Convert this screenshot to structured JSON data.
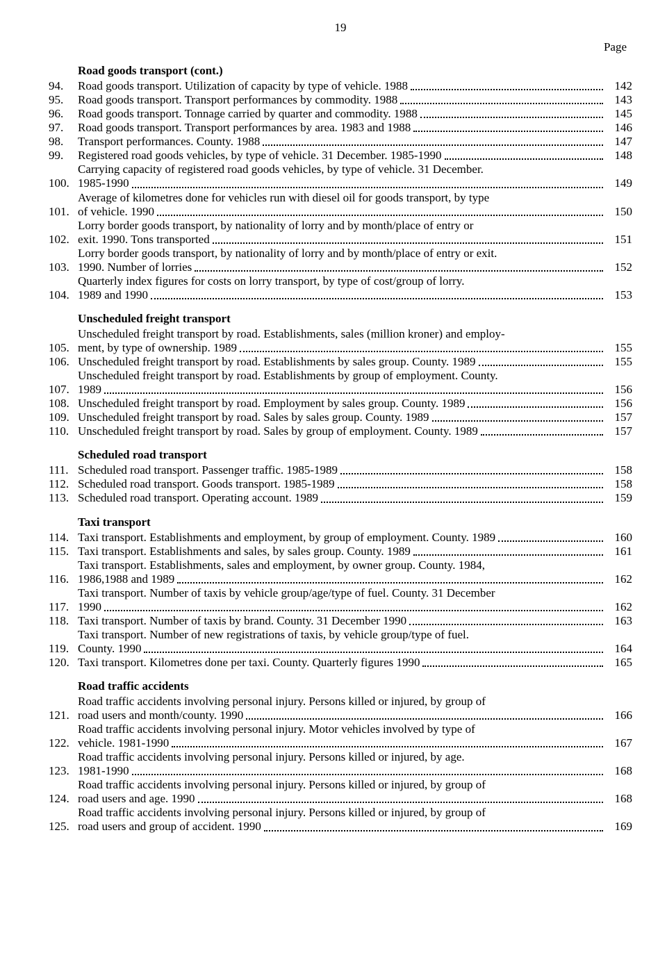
{
  "pageNumberTop": "19",
  "pageLabel": "Page",
  "sections": [
    {
      "title": "Road goods transport (cont.)",
      "entries": [
        {
          "num": "94.",
          "text": "Road goods transport.  Utilization of capacity by type of vehicle.  1988",
          "page": "142"
        },
        {
          "num": "95.",
          "text": "Road goods transport.  Transport performances by commodity.  1988",
          "page": "143"
        },
        {
          "num": "96.",
          "text": "Road goods transport.  Tonnage carried by quarter and commodity.  1988",
          "page": "145"
        },
        {
          "num": "97.",
          "text": "Road goods transport.  Transport performances by area.  1983 and 1988",
          "page": "146"
        },
        {
          "num": "98.",
          "text": "Transport performances.  County.  1988",
          "page": "147"
        },
        {
          "num": "99.",
          "text": "Registered road goods vehicles, by type of vehicle.  31 December.  1985-1990",
          "page": "148"
        },
        {
          "num": "100.",
          "lines": [
            "Carrying capacity of registered road goods vehicles, by type of vehicle.  31 December.",
            "1985-1990"
          ],
          "page": "149"
        },
        {
          "num": "101.",
          "lines": [
            "Average of kilometres done for vehicles run with diesel oil for goods transport, by type",
            "of vehicle.  1990"
          ],
          "page": "150"
        },
        {
          "num": "102.",
          "lines": [
            "Lorry border goods transport, by nationality of lorry and by month/place of entry or",
            "exit.  1990.  Tons transported"
          ],
          "page": "151"
        },
        {
          "num": "103.",
          "lines": [
            "Lorry border goods transport, by nationality of lorry and by month/place of entry or exit.",
            "1990.  Number of lorries"
          ],
          "page": "152"
        },
        {
          "num": "104.",
          "lines": [
            "Quarterly index figures for costs on lorry transport, by type of cost/group of lorry.",
            "1989 and 1990"
          ],
          "page": "153"
        }
      ]
    },
    {
      "title": "Unscheduled freight transport",
      "entries": [
        {
          "num": "105.",
          "lines": [
            "Unscheduled freight transport by road.  Establishments, sales (million kroner) and employ-",
            "ment, by type of ownership.  1989"
          ],
          "page": "155"
        },
        {
          "num": "106.",
          "text": "Unscheduled freight transport by road.  Establishments by sales group.  County.  1989",
          "page": "155"
        },
        {
          "num": "107.",
          "lines": [
            "Unscheduled freight transport by road.  Establishments by group of employment.  County.",
            "1989"
          ],
          "page": "156"
        },
        {
          "num": "108.",
          "text": "Unscheduled freight transport by road.  Employment by sales group.  County.  1989",
          "page": "156"
        },
        {
          "num": "109.",
          "text": "Unscheduled freight transport by road.  Sales by sales group.  County.  1989",
          "page": "157"
        },
        {
          "num": "110.",
          "text": "Unscheduled freight transport by road.  Sales by group of employment.  County.  1989",
          "page": "157"
        }
      ]
    },
    {
      "title": "Scheduled road transport",
      "entries": [
        {
          "num": "111.",
          "text": "Scheduled road transport.  Passenger traffic.  1985-1989",
          "page": "158"
        },
        {
          "num": "112.",
          "text": "Scheduled road transport.  Goods transport.  1985-1989",
          "page": "158"
        },
        {
          "num": "113.",
          "text": "Scheduled road transport.  Operating account.  1989",
          "page": "159"
        }
      ]
    },
    {
      "title": "Taxi transport",
      "entries": [
        {
          "num": "114.",
          "text": "Taxi transport.  Establishments and employment, by group of employment.  County.  1989",
          "page": "160"
        },
        {
          "num": "115.",
          "text": "Taxi transport.  Establishments and sales, by sales group.  County.  1989",
          "page": "161"
        },
        {
          "num": "116.",
          "lines": [
            "Taxi transport.  Establishments, sales and employment, by owner group.  County.  1984,",
            "1986,1988 and 1989"
          ],
          "page": "162"
        },
        {
          "num": "117.",
          "lines": [
            "Taxi transport.  Number of taxis by vehicle group/age/type of fuel.  County.  31 December",
            "1990"
          ],
          "page": "162"
        },
        {
          "num": "118.",
          "text": "Taxi transport.  Number of taxis by brand.  County.  31 December 1990",
          "page": "163"
        },
        {
          "num": "119.",
          "lines": [
            "Taxi transport.  Number of new registrations of taxis, by vehicle group/type of fuel.",
            "County.  1990"
          ],
          "page": "164"
        },
        {
          "num": "120.",
          "text": "Taxi transport.  Kilometres done per taxi.  County.  Quarterly figures 1990",
          "page": "165"
        }
      ]
    },
    {
      "title": "Road traffic accidents",
      "entries": [
        {
          "num": "121.",
          "lines": [
            "Road traffic accidents involving personal injury.  Persons killed or injured, by group of",
            "road users and month/county.  1990"
          ],
          "page": "166"
        },
        {
          "num": "122.",
          "lines": [
            "Road traffic accidents involving personal injury.  Motor vehicles involved by type of",
            "vehicle.  1981-1990"
          ],
          "page": "167"
        },
        {
          "num": "123.",
          "lines": [
            "Road traffic accidents involving personal injury.  Persons killed or injured, by age.",
            "1981-1990"
          ],
          "page": "168"
        },
        {
          "num": "124.",
          "lines": [
            "Road traffic accidents involving personal injury.  Persons killed or injured, by group of",
            "road users and age.  1990"
          ],
          "page": "168"
        },
        {
          "num": "125.",
          "lines": [
            "Road traffic accidents involving personal injury.  Persons killed or injured, by group of",
            "road users and group of accident.  1990"
          ],
          "page": "169"
        }
      ]
    }
  ]
}
